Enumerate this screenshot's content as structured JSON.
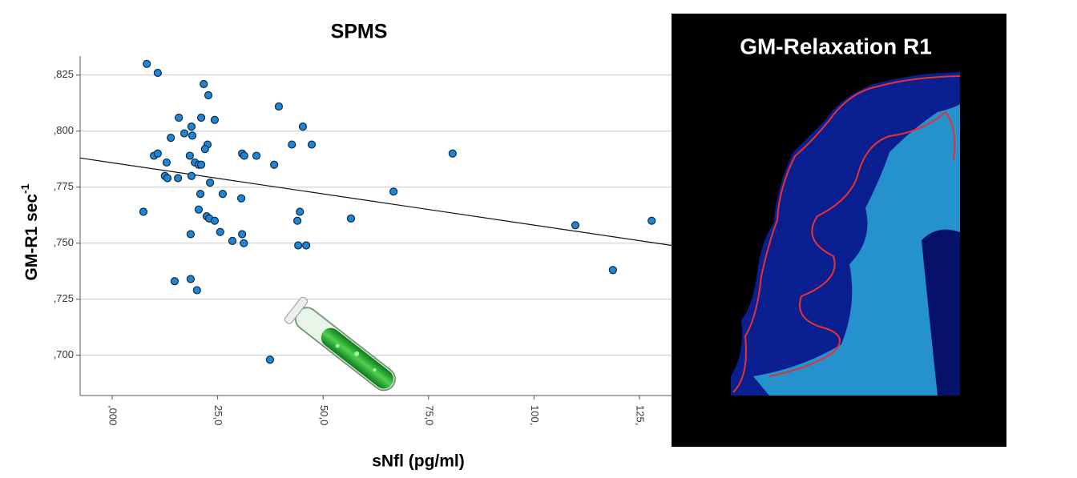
{
  "chart_data": {
    "type": "scatter",
    "title": "SPMS",
    "x_label": "sNfl (pg/ml)",
    "y_label": "GM-R1 sec",
    "y_label_superscript": "-1",
    "panel_title": "GM-Relaxation R1",
    "xlim": [
      -7.6,
      132.6
    ],
    "ylim": [
      0.682,
      0.8335
    ],
    "xticks": [
      {
        "value": 0,
        "label": ",000"
      },
      {
        "value": 25,
        "label": "25,0"
      },
      {
        "value": 50,
        "label": "50,0"
      },
      {
        "value": 75,
        "label": "75,0"
      },
      {
        "value": 100,
        "label": "100,"
      },
      {
        "value": 125,
        "label": "125,"
      }
    ],
    "yticks": [
      {
        "value": 0.7,
        "label": ",700"
      },
      {
        "value": 0.725,
        "label": ",725"
      },
      {
        "value": 0.75,
        "label": ",750"
      },
      {
        "value": 0.775,
        "label": ",775"
      },
      {
        "value": 0.8,
        "label": ",800"
      },
      {
        "value": 0.825,
        "label": ",825"
      }
    ],
    "grid": true,
    "color": "#1f86d6",
    "x": [
      8.2,
      10.8,
      21.7,
      22.8,
      15.8,
      21.1,
      18.8,
      24.3,
      17.1,
      19.0,
      13.9,
      22.6,
      22.0,
      9.9,
      10.8,
      18.4,
      19.6,
      20.5,
      21.1,
      12.9,
      12.5,
      13.1,
      15.6,
      18.8,
      23.2,
      20.9,
      26.2,
      7.4,
      20.5,
      22.4,
      23.0,
      24.3,
      25.6,
      18.6,
      28.5,
      31.2,
      14.8,
      18.6,
      20.1,
      30.8,
      31.3,
      34.2,
      38.4,
      39.5,
      42.6,
      45.2,
      47.3,
      30.6,
      30.8,
      44.5,
      43.9,
      44.1,
      46.0,
      56.6,
      66.7,
      80.7,
      109.8,
      118.7,
      127.9,
      37.4
    ],
    "y": [
      0.83,
      0.826,
      0.821,
      0.816,
      0.806,
      0.806,
      0.802,
      0.805,
      0.799,
      0.798,
      0.797,
      0.794,
      0.792,
      0.789,
      0.79,
      0.789,
      0.786,
      0.785,
      0.785,
      0.786,
      0.78,
      0.779,
      0.779,
      0.78,
      0.777,
      0.772,
      0.772,
      0.764,
      0.765,
      0.762,
      0.761,
      0.76,
      0.755,
      0.754,
      0.751,
      0.75,
      0.733,
      0.734,
      0.729,
      0.79,
      0.789,
      0.789,
      0.785,
      0.811,
      0.794,
      0.802,
      0.794,
      0.77,
      0.754,
      0.764,
      0.76,
      0.749,
      0.749,
      0.761,
      0.773,
      0.79,
      0.758,
      0.738,
      0.76,
      0.698
    ],
    "fit_line": {
      "x": [
        -7.6,
        132.6
      ],
      "y": [
        0.788,
        0.749
      ]
    }
  }
}
